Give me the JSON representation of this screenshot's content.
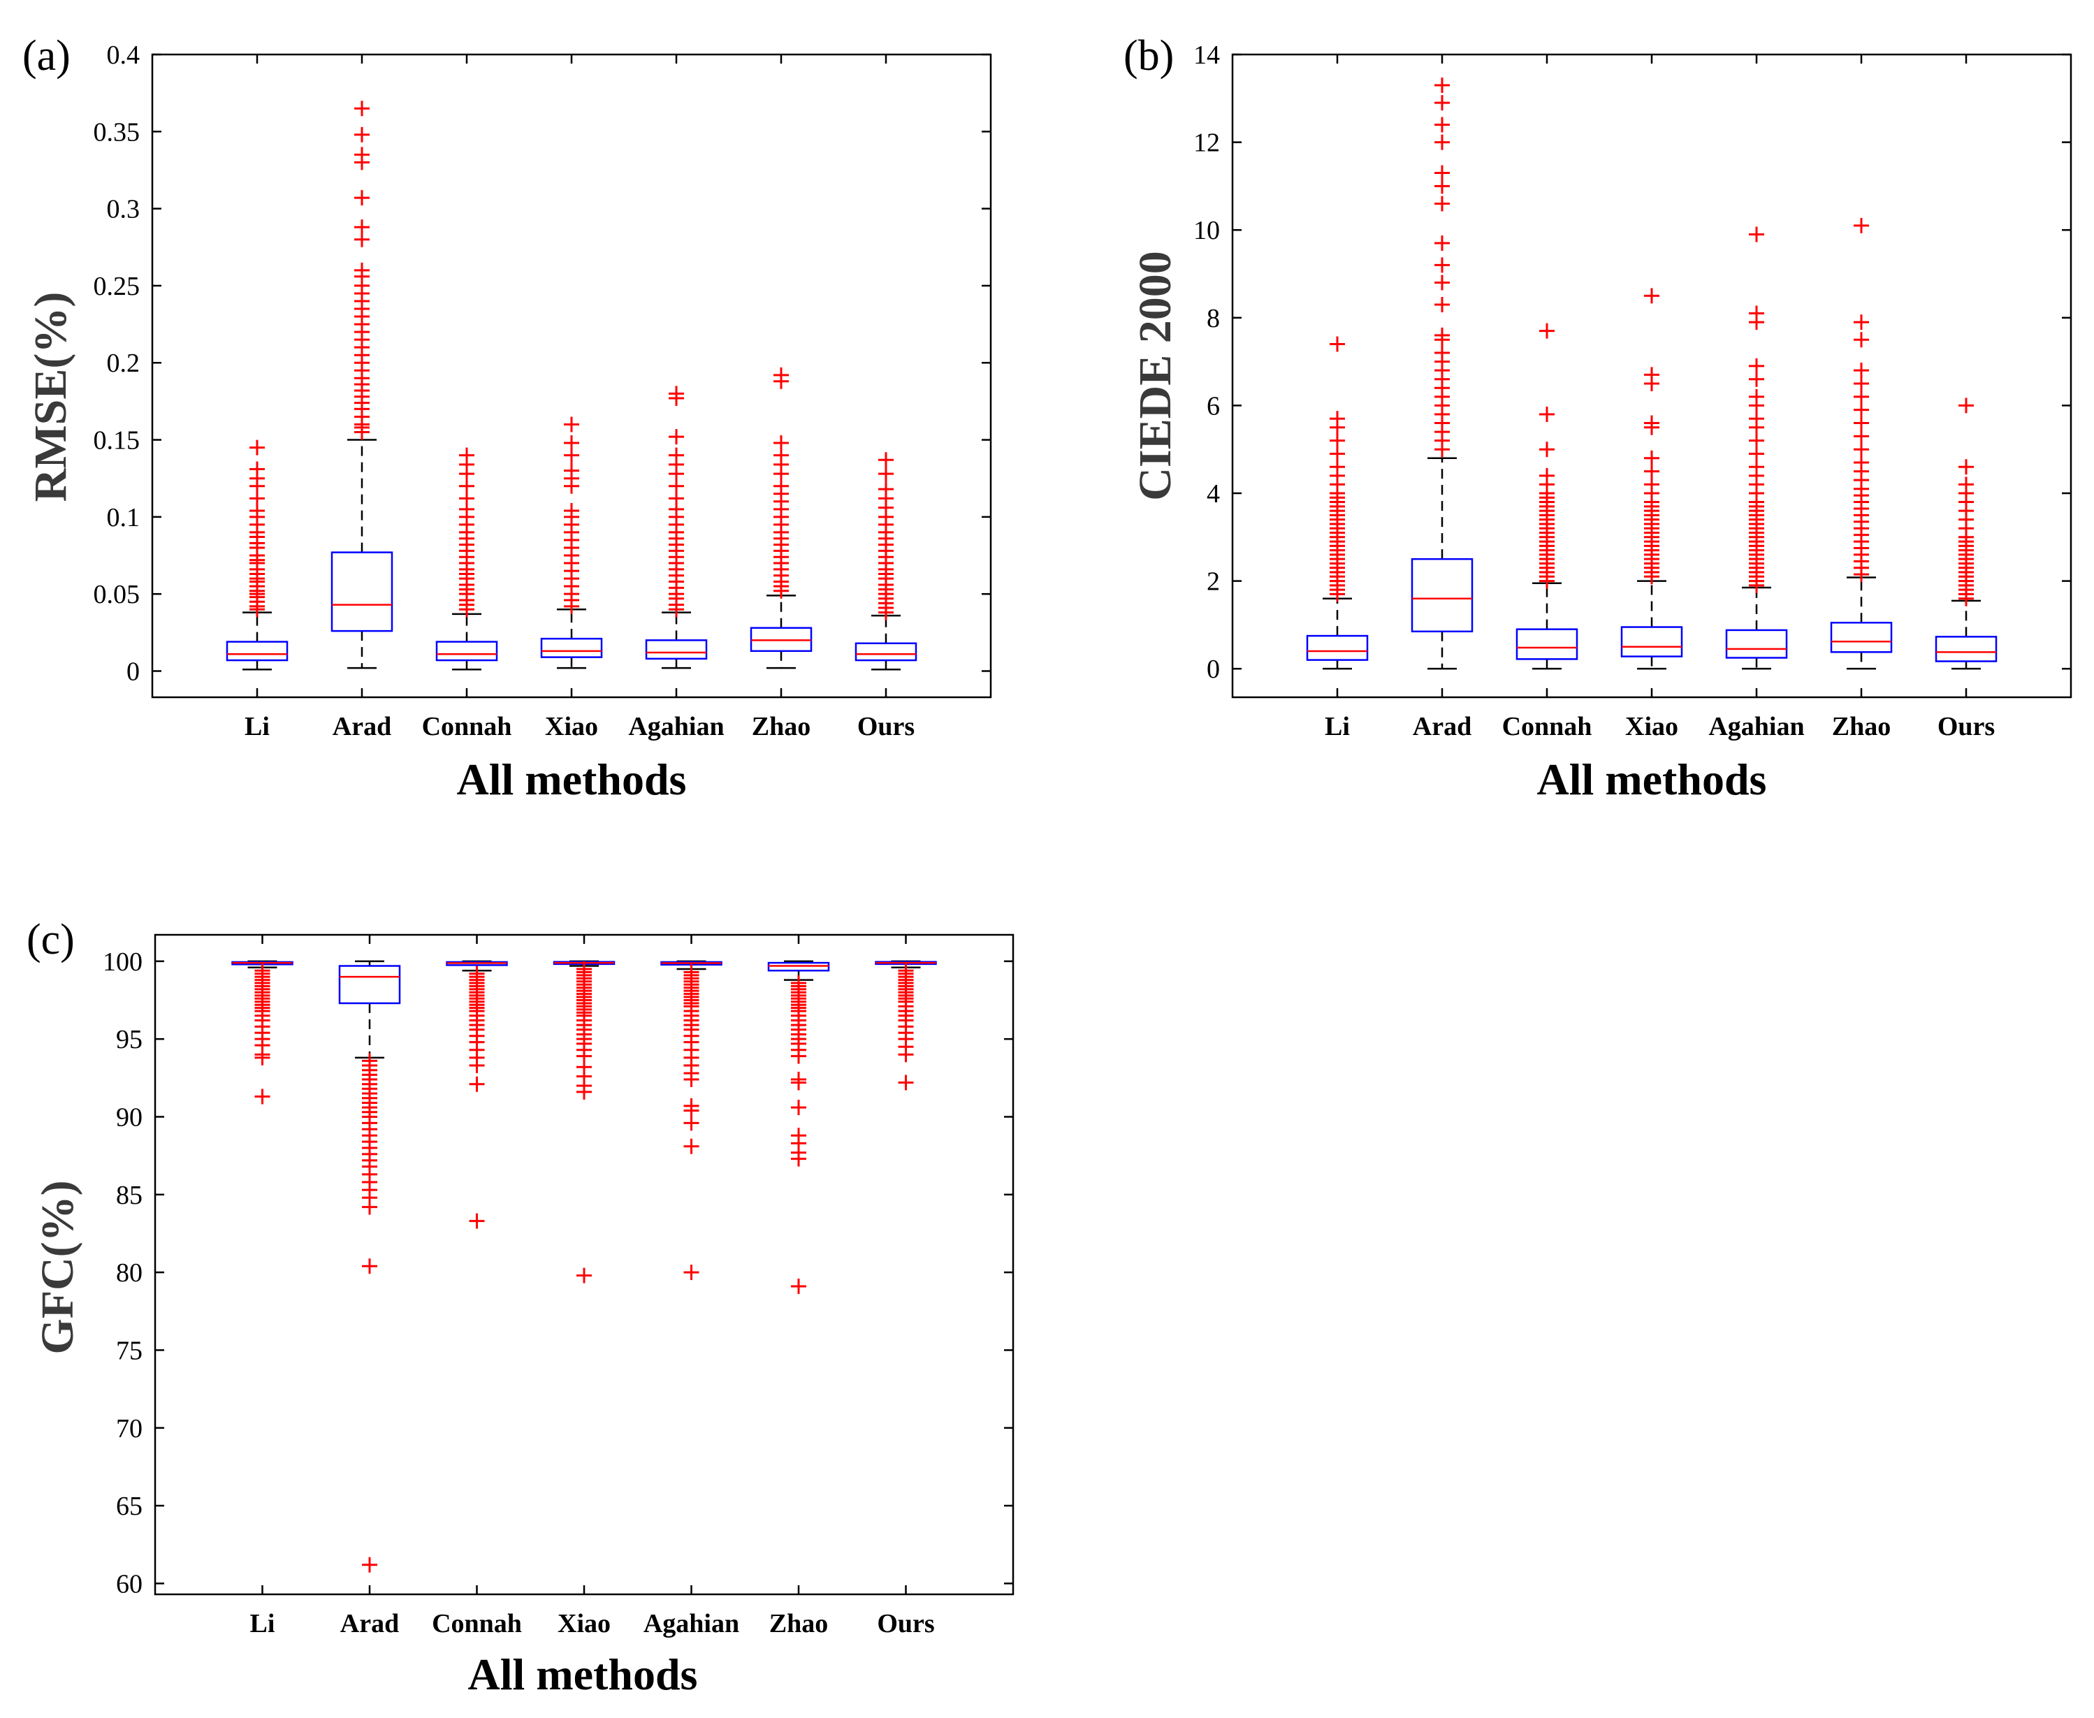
{
  "chart_data": [
    {
      "type": "box",
      "panel_label": "(a)",
      "title": "",
      "xlabel": "All methods",
      "ylabel": "RMSE(%)",
      "categories": [
        "Li",
        "Arad",
        "Connah",
        "Xiao",
        "Agahian",
        "Zhao",
        "Ours"
      ],
      "ylim": [
        -0.017,
        0.4
      ],
      "yticks": [
        0,
        0.05,
        0.1,
        0.15,
        0.2,
        0.25,
        0.3,
        0.35,
        0.4
      ],
      "ytick_labels": [
        "0",
        "0.05",
        "0.1",
        "0.15",
        "0.2",
        "0.25",
        "0.3",
        "0.35",
        "0.4"
      ],
      "grid": false,
      "colors": {
        "box": "#0000ff",
        "median": "#ff0000",
        "whisker": "#000000",
        "outlier": "#ff0000"
      },
      "boxes": [
        {
          "min": 0.001,
          "q1": 0.007,
          "median": 0.011,
          "q3": 0.019,
          "max": 0.038,
          "outliers": [
            0.04,
            0.042,
            0.045,
            0.048,
            0.05,
            0.052,
            0.055,
            0.058,
            0.06,
            0.063,
            0.066,
            0.07,
            0.072,
            0.075,
            0.08,
            0.083,
            0.087,
            0.09,
            0.095,
            0.1,
            0.104,
            0.112,
            0.12,
            0.125,
            0.131,
            0.145
          ]
        },
        {
          "min": 0.002,
          "q1": 0.026,
          "median": 0.043,
          "q3": 0.077,
          "max": 0.15,
          "outliers": [
            0.155,
            0.158,
            0.16,
            0.165,
            0.17,
            0.174,
            0.178,
            0.182,
            0.186,
            0.19,
            0.195,
            0.2,
            0.205,
            0.21,
            0.215,
            0.22,
            0.225,
            0.23,
            0.235,
            0.24,
            0.245,
            0.25,
            0.256,
            0.26,
            0.28,
            0.288,
            0.307,
            0.33,
            0.335,
            0.348,
            0.365
          ]
        },
        {
          "min": 0.001,
          "q1": 0.007,
          "median": 0.011,
          "q3": 0.019,
          "max": 0.037,
          "outliers": [
            0.04,
            0.043,
            0.046,
            0.05,
            0.053,
            0.056,
            0.06,
            0.063,
            0.066,
            0.07,
            0.074,
            0.078,
            0.082,
            0.086,
            0.09,
            0.095,
            0.1,
            0.105,
            0.112,
            0.12,
            0.128,
            0.134,
            0.14
          ]
        },
        {
          "min": 0.002,
          "q1": 0.009,
          "median": 0.013,
          "q3": 0.021,
          "max": 0.04,
          "outliers": [
            0.042,
            0.046,
            0.05,
            0.055,
            0.06,
            0.065,
            0.07,
            0.075,
            0.08,
            0.085,
            0.09,
            0.095,
            0.1,
            0.104,
            0.12,
            0.125,
            0.13,
            0.14,
            0.148,
            0.16
          ]
        },
        {
          "min": 0.002,
          "q1": 0.008,
          "median": 0.012,
          "q3": 0.02,
          "max": 0.038,
          "outliers": [
            0.04,
            0.043,
            0.047,
            0.05,
            0.054,
            0.058,
            0.062,
            0.066,
            0.07,
            0.074,
            0.078,
            0.082,
            0.086,
            0.09,
            0.095,
            0.1,
            0.105,
            0.112,
            0.12,
            0.128,
            0.134,
            0.14,
            0.152,
            0.177,
            0.18
          ]
        },
        {
          "min": 0.002,
          "q1": 0.013,
          "median": 0.02,
          "q3": 0.028,
          "max": 0.049,
          "outliers": [
            0.052,
            0.055,
            0.058,
            0.062,
            0.066,
            0.07,
            0.074,
            0.078,
            0.082,
            0.086,
            0.09,
            0.095,
            0.1,
            0.105,
            0.11,
            0.115,
            0.12,
            0.128,
            0.134,
            0.14,
            0.148,
            0.188,
            0.192
          ]
        },
        {
          "min": 0.001,
          "q1": 0.007,
          "median": 0.011,
          "q3": 0.018,
          "max": 0.036,
          "outliers": [
            0.038,
            0.041,
            0.044,
            0.047,
            0.05,
            0.053,
            0.056,
            0.06,
            0.063,
            0.066,
            0.07,
            0.074,
            0.078,
            0.082,
            0.086,
            0.09,
            0.095,
            0.1,
            0.106,
            0.112,
            0.118,
            0.128,
            0.137
          ]
        }
      ]
    },
    {
      "type": "box",
      "panel_label": "(b)",
      "title": "",
      "xlabel": "All methods",
      "ylabel": "CIEDE 2000",
      "categories": [
        "Li",
        "Arad",
        "Connah",
        "Xiao",
        "Agahian",
        "Zhao",
        "Ours"
      ],
      "ylim": [
        -0.65,
        14
      ],
      "yticks": [
        0,
        2,
        4,
        6,
        8,
        10,
        12,
        14
      ],
      "ytick_labels": [
        "0",
        "2",
        "4",
        "6",
        "8",
        "10",
        "12",
        "14"
      ],
      "grid": false,
      "colors": {
        "box": "#0000ff",
        "median": "#ff0000",
        "whisker": "#000000",
        "outlier": "#ff0000"
      },
      "boxes": [
        {
          "min": 0.0,
          "q1": 0.2,
          "median": 0.4,
          "q3": 0.75,
          "max": 1.6,
          "outliers": [
            1.7,
            1.8,
            1.9,
            2.0,
            2.1,
            2.2,
            2.3,
            2.4,
            2.5,
            2.6,
            2.7,
            2.8,
            2.9,
            3.0,
            3.1,
            3.2,
            3.3,
            3.4,
            3.5,
            3.6,
            3.7,
            3.8,
            3.9,
            4.0,
            4.2,
            4.4,
            4.6,
            4.9,
            5.2,
            5.5,
            5.7,
            7.4
          ]
        },
        {
          "min": 0.0,
          "q1": 0.85,
          "median": 1.6,
          "q3": 2.5,
          "max": 4.8,
          "outliers": [
            5.0,
            5.2,
            5.4,
            5.6,
            5.8,
            6.0,
            6.2,
            6.4,
            6.6,
            6.8,
            7.0,
            7.2,
            7.5,
            7.6,
            8.3,
            8.8,
            9.2,
            9.7,
            10.6,
            11.0,
            11.3,
            12.0,
            12.4,
            12.9,
            13.3
          ]
        },
        {
          "min": 0.0,
          "q1": 0.22,
          "median": 0.48,
          "q3": 0.9,
          "max": 1.95,
          "outliers": [
            2.0,
            2.1,
            2.2,
            2.3,
            2.4,
            2.5,
            2.6,
            2.7,
            2.8,
            2.9,
            3.0,
            3.1,
            3.2,
            3.3,
            3.4,
            3.5,
            3.6,
            3.7,
            3.8,
            3.9,
            4.0,
            4.2,
            4.4,
            5.0,
            5.8,
            7.7
          ]
        },
        {
          "min": 0.0,
          "q1": 0.28,
          "median": 0.5,
          "q3": 0.95,
          "max": 2.0,
          "outliers": [
            2.1,
            2.2,
            2.3,
            2.4,
            2.5,
            2.6,
            2.7,
            2.8,
            2.9,
            3.0,
            3.1,
            3.2,
            3.3,
            3.4,
            3.5,
            3.6,
            3.7,
            3.8,
            4.0,
            4.2,
            4.5,
            4.8,
            5.5,
            5.6,
            6.5,
            6.7,
            8.5
          ]
        },
        {
          "min": 0.0,
          "q1": 0.25,
          "median": 0.45,
          "q3": 0.88,
          "max": 1.85,
          "outliers": [
            1.9,
            2.0,
            2.1,
            2.2,
            2.3,
            2.4,
            2.5,
            2.6,
            2.7,
            2.8,
            2.9,
            3.0,
            3.1,
            3.2,
            3.3,
            3.4,
            3.5,
            3.6,
            3.7,
            3.8,
            4.0,
            4.2,
            4.4,
            4.6,
            4.9,
            5.2,
            5.5,
            5.7,
            6.0,
            6.2,
            6.6,
            6.9,
            7.9,
            8.1,
            9.9
          ]
        },
        {
          "min": 0.0,
          "q1": 0.38,
          "median": 0.62,
          "q3": 1.05,
          "max": 2.08,
          "outliers": [
            2.15,
            2.3,
            2.45,
            2.6,
            2.75,
            2.9,
            3.05,
            3.2,
            3.35,
            3.5,
            3.65,
            3.8,
            3.95,
            4.1,
            4.3,
            4.5,
            4.7,
            5.0,
            5.3,
            5.6,
            5.9,
            6.2,
            6.5,
            6.8,
            7.5,
            7.9,
            10.1
          ]
        },
        {
          "min": 0.0,
          "q1": 0.17,
          "median": 0.38,
          "q3": 0.73,
          "max": 1.55,
          "outliers": [
            1.6,
            1.7,
            1.8,
            1.9,
            2.0,
            2.1,
            2.2,
            2.3,
            2.4,
            2.5,
            2.6,
            2.7,
            2.8,
            2.9,
            3.0,
            3.2,
            3.4,
            3.6,
            3.8,
            4.0,
            4.2,
            4.6,
            6.0
          ]
        }
      ]
    },
    {
      "type": "box",
      "panel_label": "(c)",
      "title": "",
      "xlabel": "All methods",
      "ylabel": "GFC(%)",
      "categories": [
        "Li",
        "Arad",
        "Connah",
        "Xiao",
        "Agahian",
        "Zhao",
        "Ours"
      ],
      "ylim": [
        59.3,
        101.7
      ],
      "yticks": [
        60,
        65,
        70,
        75,
        80,
        85,
        90,
        95,
        100
      ],
      "ytick_labels": [
        "60",
        "65",
        "70",
        "75",
        "80",
        "85",
        "90",
        "95",
        "100"
      ],
      "grid": false,
      "colors": {
        "box": "#0000ff",
        "median": "#ff0000",
        "whisker": "#000000",
        "outlier": "#ff0000"
      },
      "boxes": [
        {
          "min": 99.6,
          "q1": 99.8,
          "median": 99.9,
          "q3": 99.95,
          "max": 100.0,
          "outliers": [
            99.4,
            99.2,
            99.0,
            98.8,
            98.6,
            98.4,
            98.2,
            98.0,
            97.8,
            97.6,
            97.4,
            97.2,
            97.0,
            96.8,
            96.5,
            96.2,
            95.8,
            95.4,
            95.0,
            94.6,
            94.0,
            93.8,
            91.3
          ]
        },
        {
          "min": 93.8,
          "q1": 97.3,
          "median": 99.0,
          "q3": 99.7,
          "max": 100.0,
          "outliers": [
            93.6,
            93.3,
            93.0,
            92.7,
            92.4,
            92.1,
            91.8,
            91.5,
            91.2,
            90.9,
            90.6,
            90.3,
            90.0,
            89.6,
            89.2,
            88.8,
            88.4,
            88.0,
            87.6,
            87.2,
            86.8,
            86.3,
            85.8,
            85.3,
            84.8,
            84.2,
            80.4,
            61.2
          ]
        },
        {
          "min": 99.4,
          "q1": 99.75,
          "median": 99.88,
          "q3": 99.95,
          "max": 100.0,
          "outliers": [
            99.2,
            99.0,
            98.8,
            98.6,
            98.4,
            98.2,
            98.0,
            97.8,
            97.6,
            97.4,
            97.2,
            97.0,
            96.8,
            96.5,
            96.2,
            95.9,
            95.6,
            95.2,
            94.8,
            94.3,
            93.8,
            93.3,
            92.1,
            83.3
          ]
        },
        {
          "min": 99.7,
          "q1": 99.82,
          "median": 99.9,
          "q3": 99.96,
          "max": 100.0,
          "outliers": [
            99.5,
            99.3,
            99.1,
            98.9,
            98.7,
            98.5,
            98.3,
            98.1,
            97.9,
            97.7,
            97.5,
            97.3,
            97.1,
            96.9,
            96.7,
            96.5,
            96.2,
            95.9,
            95.6,
            95.3,
            95.0,
            94.7,
            94.3,
            93.9,
            93.2,
            92.6,
            92.0,
            91.6,
            79.8
          ]
        },
        {
          "min": 99.5,
          "q1": 99.78,
          "median": 99.88,
          "q3": 99.95,
          "max": 100.0,
          "outliers": [
            99.3,
            99.1,
            98.9,
            98.7,
            98.5,
            98.3,
            98.1,
            97.9,
            97.7,
            97.5,
            97.3,
            97.1,
            96.8,
            96.5,
            96.2,
            95.9,
            95.6,
            95.2,
            94.8,
            94.3,
            93.8,
            93.3,
            92.8,
            92.4,
            90.7,
            90.4,
            89.6,
            88.1,
            80.0
          ]
        },
        {
          "min": 98.8,
          "q1": 99.4,
          "median": 99.7,
          "q3": 99.9,
          "max": 100.0,
          "outliers": [
            98.6,
            98.4,
            98.2,
            98.0,
            97.8,
            97.6,
            97.4,
            97.2,
            97.0,
            96.8,
            96.5,
            96.2,
            95.9,
            95.6,
            95.3,
            95.0,
            94.7,
            94.3,
            93.9,
            92.4,
            92.2,
            90.6,
            88.8,
            88.3,
            87.7,
            87.3,
            79.1
          ]
        },
        {
          "min": 99.6,
          "q1": 99.82,
          "median": 99.9,
          "q3": 99.96,
          "max": 100.0,
          "outliers": [
            99.4,
            99.2,
            99.0,
            98.8,
            98.6,
            98.4,
            98.2,
            98.0,
            97.8,
            97.6,
            97.4,
            97.1,
            96.8,
            96.5,
            96.2,
            95.8,
            95.4,
            95.0,
            94.5,
            94.0,
            92.2
          ]
        }
      ]
    }
  ]
}
